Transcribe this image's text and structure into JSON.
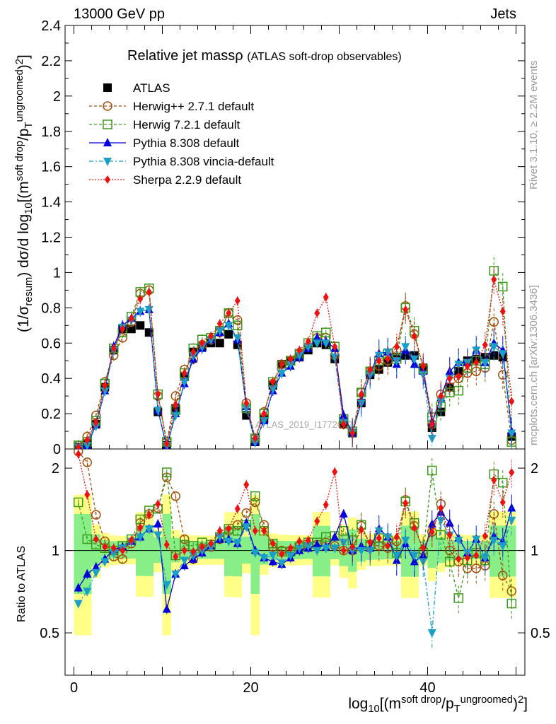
{
  "header": {
    "left": "13000 GeV pp",
    "right": "Jets",
    "side_top": "Rivet 3.1.10, ≥ 2.2M events",
    "side_bottom": "mcplots.cern.ch [arXiv:1306.3436]",
    "watermark": "ATLAS_2019_I1772062"
  },
  "chart_data": {
    "type": "line",
    "title": "Relative jet mass",
    "title_symbol": "ρ",
    "subtitle": "(ATLAS soft-drop observables)",
    "ylabel_main": "(1/σresum) dσ/d log10[(m soft drop/pT ungroomed)2]",
    "ylabel_ratio": "Ratio to ATLAS",
    "xlabel": "log10[(m soft drop/pT ungroomed)2]",
    "xlim": [
      -1,
      51
    ],
    "ylim_main": [
      0,
      2.4
    ],
    "ylim_ratio": [
      0.35,
      2.35
    ],
    "xticks": [
      0,
      20,
      40
    ],
    "yticks_main": [
      0,
      0.2,
      0.4,
      0.6,
      0.8,
      1,
      1.2,
      1.4,
      1.6,
      1.8,
      2,
      2.2,
      2.4
    ],
    "yticks_ratio": [
      0.5,
      1,
      2
    ],
    "legend_position": "top-left",
    "x": [
      0.5,
      1.5,
      2.5,
      3.5,
      4.5,
      5.5,
      6.5,
      7.5,
      8.5,
      9.5,
      10.5,
      11.5,
      12.5,
      13.5,
      14.5,
      15.5,
      16.5,
      17.5,
      18.5,
      19.5,
      20.5,
      21.5,
      22.5,
      23.5,
      24.5,
      25.5,
      26.5,
      27.5,
      28.5,
      29.5,
      30.5,
      31.5,
      32.5,
      33.5,
      34.5,
      35.5,
      36.5,
      37.5,
      38.5,
      39.5,
      40.5,
      41.5,
      42.5,
      43.5,
      44.5,
      45.5,
      46.5,
      47.5,
      48.5,
      49.5
    ],
    "series": [
      {
        "name": "ATLAS",
        "color": "#000000",
        "marker": "square-filled",
        "line": "none",
        "values": [
          0.01,
          0.03,
          0.14,
          0.35,
          0.56,
          0.68,
          0.68,
          0.7,
          0.66,
          0.21,
          0.02,
          0.23,
          0.41,
          0.55,
          0.58,
          0.6,
          0.6,
          0.65,
          0.59,
          0.19,
          0.04,
          0.17,
          0.36,
          0.48,
          0.5,
          0.52,
          0.56,
          0.6,
          0.59,
          0.51,
          0.14,
          0.09,
          0.26,
          0.42,
          0.45,
          0.49,
          0.52,
          0.53,
          0.53,
          0.46,
          0.12,
          0.21,
          0.35,
          0.44,
          0.5,
          0.51,
          0.52,
          0.53,
          0.52,
          0.07
        ],
        "ratio": [
          1,
          1,
          1,
          1,
          1,
          1,
          1,
          1,
          1,
          1,
          1,
          1,
          1,
          1,
          1,
          1,
          1,
          1,
          1,
          1,
          1,
          1,
          1,
          1,
          1,
          1,
          1,
          1,
          1,
          1,
          1,
          1,
          1,
          1,
          1,
          1,
          1,
          1,
          1,
          1,
          1,
          1,
          1,
          1,
          1,
          1,
          1,
          1,
          1,
          1
        ]
      },
      {
        "name": "Herwig++ 2.7.1 default",
        "color": "#a0500a",
        "marker": "circle-open",
        "line": "dashed",
        "values": [
          0.02,
          0.07,
          0.19,
          0.38,
          0.53,
          0.63,
          0.72,
          0.88,
          0.9,
          0.3,
          0.04,
          0.3,
          0.45,
          0.51,
          0.59,
          0.62,
          0.66,
          0.77,
          0.73,
          0.26,
          0.06,
          0.21,
          0.37,
          0.48,
          0.5,
          0.54,
          0.58,
          0.63,
          0.63,
          0.53,
          0.14,
          0.09,
          0.32,
          0.44,
          0.47,
          0.5,
          0.56,
          0.81,
          0.65,
          0.46,
          0.14,
          0.31,
          0.35,
          0.4,
          0.43,
          0.44,
          0.46,
          0.72,
          0.42,
          0.05
        ],
        "ratio": [
          2.3,
          2.1,
          1.35,
          1.08,
          0.95,
          0.93,
          1.06,
          1.26,
          1.36,
          1.43,
          1.85,
          1.58,
          1.1,
          0.93,
          1.02,
          1.03,
          1.1,
          1.18,
          1.24,
          1.37,
          1.5,
          1.24,
          1.03,
          1.0,
          1.0,
          1.04,
          1.04,
          1.05,
          1.07,
          1.04,
          1.0,
          1.0,
          1.23,
          1.05,
          1.04,
          1.02,
          1.08,
          1.53,
          1.23,
          1.0,
          1.17,
          1.48,
          1.0,
          0.91,
          0.86,
          0.86,
          0.88,
          1.36,
          0.81,
          0.71
        ]
      },
      {
        "name": "Herwig 7.2.1 default",
        "color": "#3a9a1a",
        "marker": "square-open",
        "line": "dashed",
        "values": [
          0.02,
          0.04,
          0.16,
          0.37,
          0.57,
          0.66,
          0.75,
          0.89,
          0.91,
          0.31,
          0.04,
          0.22,
          0.43,
          0.57,
          0.62,
          0.63,
          0.67,
          0.77,
          0.7,
          0.23,
          0.06,
          0.2,
          0.38,
          0.47,
          0.5,
          0.54,
          0.6,
          0.64,
          0.66,
          0.58,
          0.17,
          0.1,
          0.32,
          0.44,
          0.5,
          0.54,
          0.51,
          0.8,
          0.67,
          0.45,
          0.18,
          0.24,
          0.32,
          0.33,
          0.46,
          0.5,
          0.48,
          1.01,
          0.92,
          0.04
        ],
        "ratio": [
          1.5,
          1.1,
          1.05,
          1.02,
          1.0,
          1.04,
          1.1,
          1.3,
          1.4,
          1.42,
          1.93,
          0.96,
          1.05,
          1.04,
          1.07,
          1.05,
          1.12,
          1.2,
          1.18,
          1.24,
          1.58,
          1.18,
          1.06,
          0.99,
          0.99,
          1.03,
          1.07,
          1.07,
          1.12,
          1.13,
          1.18,
          1.09,
          1.24,
          1.05,
          1.11,
          1.09,
          0.98,
          1.51,
          1.26,
          0.98,
          1.96,
          1.14,
          0.91,
          0.67,
          0.92,
          0.98,
          0.92,
          1.9,
          1.77,
          0.64
        ]
      },
      {
        "name": "Pythia 8.308 default",
        "color": "#0000dd",
        "marker": "triangle-up-filled",
        "line": "solid",
        "values": [
          0.01,
          0.02,
          0.14,
          0.33,
          0.58,
          0.7,
          0.74,
          0.78,
          0.79,
          0.22,
          0.01,
          0.2,
          0.37,
          0.51,
          0.57,
          0.62,
          0.66,
          0.71,
          0.62,
          0.24,
          0.04,
          0.16,
          0.33,
          0.43,
          0.47,
          0.52,
          0.57,
          0.63,
          0.61,
          0.57,
          0.19,
          0.09,
          0.27,
          0.43,
          0.54,
          0.55,
          0.48,
          0.56,
          0.48,
          0.44,
          0.15,
          0.29,
          0.44,
          0.49,
          0.49,
          0.56,
          0.49,
          0.6,
          0.56,
          0.1
        ],
        "ratio": [
          0.73,
          0.82,
          0.87,
          0.93,
          1.01,
          1.03,
          1.08,
          1.12,
          1.2,
          1.25,
          0.61,
          0.82,
          0.88,
          0.93,
          0.98,
          1.04,
          1.1,
          1.1,
          1.06,
          1.26,
          1.0,
          0.94,
          0.91,
          0.89,
          0.94,
          1.0,
          1.02,
          1.05,
          1.03,
          1.12,
          1.36,
          1.0,
          1.04,
          1.02,
          1.2,
          1.12,
          0.92,
          1.06,
          0.91,
          0.96,
          1.25,
          1.38,
          1.26,
          1.11,
          0.98,
          1.1,
          0.94,
          1.13,
          1.08,
          1.43
        ]
      },
      {
        "name": "Pythia 8.308 vincia-default",
        "color": "#1aa0c8",
        "marker": "triangle-down-filled",
        "line": "dashdot",
        "values": [
          0.01,
          0.02,
          0.13,
          0.33,
          0.56,
          0.69,
          0.73,
          0.78,
          0.79,
          0.22,
          0.02,
          0.19,
          0.38,
          0.53,
          0.58,
          0.62,
          0.67,
          0.7,
          0.63,
          0.23,
          0.04,
          0.16,
          0.34,
          0.43,
          0.48,
          0.53,
          0.58,
          0.6,
          0.6,
          0.52,
          0.15,
          0.09,
          0.26,
          0.42,
          0.53,
          0.55,
          0.5,
          0.58,
          0.51,
          0.42,
          0.06,
          0.27,
          0.4,
          0.48,
          0.49,
          0.56,
          0.49,
          0.58,
          0.54,
          0.09
        ],
        "ratio": [
          0.64,
          0.71,
          0.83,
          0.91,
          0.98,
          1.02,
          1.08,
          1.12,
          1.2,
          1.14,
          0.75,
          0.82,
          0.92,
          0.96,
          1.0,
          1.03,
          1.12,
          1.08,
          1.07,
          1.22,
          0.98,
          0.94,
          0.96,
          0.9,
          0.96,
          1.02,
          1.04,
          1.0,
          1.02,
          1.02,
          1.07,
          1.0,
          1.0,
          1.0,
          1.18,
          1.12,
          0.96,
          1.09,
          0.96,
          0.91,
          0.5,
          1.29,
          1.14,
          1.09,
          0.98,
          1.1,
          0.94,
          1.09,
          1.04,
          1.29
        ]
      },
      {
        "name": "Sherpa 2.2.9 default",
        "color": "#ee1111",
        "marker": "diamond-filled",
        "line": "dotted",
        "values": [
          0.01,
          0.05,
          0.15,
          0.36,
          0.57,
          0.68,
          0.74,
          0.85,
          0.89,
          0.31,
          0.03,
          0.25,
          0.43,
          0.55,
          0.6,
          0.64,
          0.71,
          0.77,
          0.84,
          0.26,
          0.06,
          0.2,
          0.38,
          0.48,
          0.51,
          0.56,
          0.61,
          0.77,
          0.86,
          0.58,
          0.14,
          0.09,
          0.31,
          0.45,
          0.5,
          0.51,
          0.58,
          0.79,
          0.64,
          0.47,
          0.14,
          0.3,
          0.4,
          0.41,
          0.47,
          0.49,
          0.59,
          0.96,
          0.78,
          0.27
        ],
        "ratio": [
          2.25,
          1.6,
          1.1,
          1.03,
          1.02,
          1.0,
          1.09,
          1.21,
          1.35,
          1.48,
          1.05,
          0.95,
          1.0,
          0.99,
          1.03,
          1.06,
          1.18,
          1.2,
          1.42,
          1.74,
          1.18,
          1.18,
          1.06,
          0.97,
          1.02,
          1.08,
          1.09,
          1.28,
          1.47,
          1.94,
          1.0,
          1.03,
          1.19,
          1.07,
          1.11,
          1.04,
          1.12,
          1.49,
          1.21,
          1.02,
          1.17,
          1.43,
          1.14,
          0.93,
          0.94,
          0.96,
          1.13,
          1.81,
          1.5,
          1.93
        ]
      }
    ]
  }
}
